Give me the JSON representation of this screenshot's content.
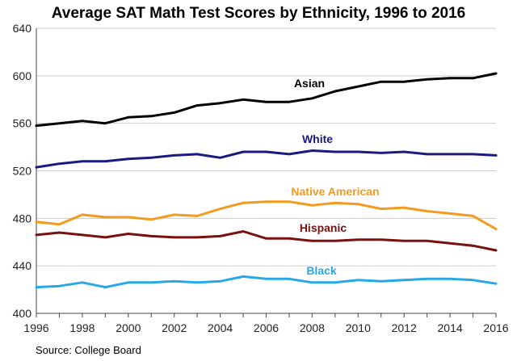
{
  "chart_data": {
    "type": "line",
    "title": "Average SAT Math Test Scores by Ethnicity, 1996 to 2016",
    "source": "Source: College Board",
    "xlabel": "",
    "ylabel": "",
    "x": [
      1996,
      1997,
      1998,
      1999,
      2000,
      2001,
      2002,
      2003,
      2004,
      2005,
      2006,
      2007,
      2008,
      2009,
      2010,
      2011,
      2012,
      2013,
      2014,
      2015,
      2016
    ],
    "x_ticks": [
      1996,
      1998,
      2000,
      2002,
      2004,
      2006,
      2008,
      2010,
      2012,
      2014,
      2016
    ],
    "y_ticks": [
      400,
      440,
      480,
      520,
      560,
      600,
      640
    ],
    "xlim": [
      1996,
      2016
    ],
    "ylim": [
      400,
      640
    ],
    "grid": "horizontal",
    "series": [
      {
        "name": "Asian",
        "color": "#000000",
        "values": [
          558,
          560,
          562,
          560,
          565,
          566,
          569,
          575,
          577,
          580,
          578,
          578,
          581,
          587,
          591,
          595,
          595,
          597,
          598,
          598,
          602
        ]
      },
      {
        "name": "White",
        "color": "#1a1a80",
        "values": [
          523,
          526,
          528,
          528,
          530,
          531,
          533,
          534,
          531,
          536,
          536,
          534,
          537,
          536,
          536,
          535,
          536,
          534,
          534,
          534,
          533
        ]
      },
      {
        "name": "Native American",
        "color": "#f39a21",
        "values": [
          477,
          475,
          483,
          481,
          481,
          479,
          483,
          482,
          488,
          493,
          494,
          494,
          491,
          493,
          492,
          488,
          489,
          486,
          484,
          482,
          471
        ]
      },
      {
        "name": "Hispanic",
        "color": "#7a1010",
        "values": [
          466,
          468,
          466,
          464,
          467,
          465,
          464,
          464,
          465,
          469,
          463,
          463,
          461,
          461,
          462,
          462,
          461,
          461,
          459,
          457,
          453
        ]
      },
      {
        "name": "Black",
        "color": "#29a8e8",
        "values": [
          422,
          423,
          426,
          422,
          426,
          426,
          427,
          426,
          427,
          431,
          429,
          429,
          426,
          426,
          428,
          427,
          428,
          429,
          429,
          428,
          425
        ]
      }
    ]
  }
}
